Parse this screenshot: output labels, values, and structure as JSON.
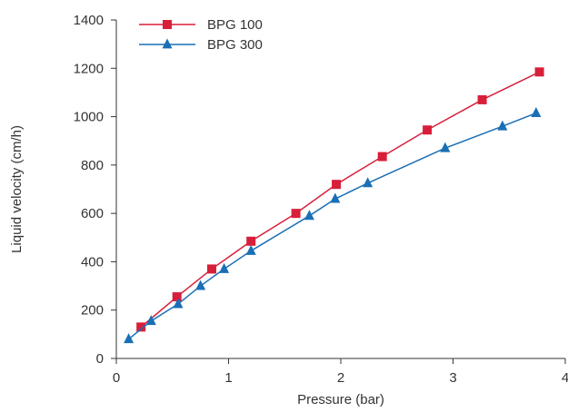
{
  "chart_data": {
    "type": "line",
    "title": "",
    "xlabel": "Pressure (bar)",
    "ylabel": "Liquid velocity (cm/h)",
    "xlim": [
      0,
      4
    ],
    "ylim": [
      0,
      1400
    ],
    "xticks": [
      "0",
      "1",
      "2",
      "3",
      "4"
    ],
    "yticks": [
      "0",
      "200",
      "400",
      "600",
      "800",
      "1000",
      "1200",
      "1400"
    ],
    "grid": false,
    "legend_position": "top-left",
    "series": [
      {
        "name": "BPG 100",
        "color": "#d81f3a",
        "marker": "square",
        "x": [
          0.22,
          0.54,
          0.85,
          1.2,
          1.6,
          1.96,
          2.37,
          2.77,
          3.26,
          3.77
        ],
        "y": [
          130,
          255,
          370,
          485,
          600,
          720,
          835,
          945,
          1070,
          1185
        ]
      },
      {
        "name": "BPG 300",
        "color": "#1a6fb6",
        "marker": "triangle",
        "x": [
          0.11,
          0.31,
          0.55,
          0.75,
          0.96,
          1.2,
          1.72,
          1.95,
          2.24,
          2.93,
          3.44,
          3.74
        ],
        "y": [
          80,
          155,
          225,
          300,
          370,
          445,
          590,
          660,
          725,
          870,
          960,
          1015
        ]
      }
    ]
  }
}
